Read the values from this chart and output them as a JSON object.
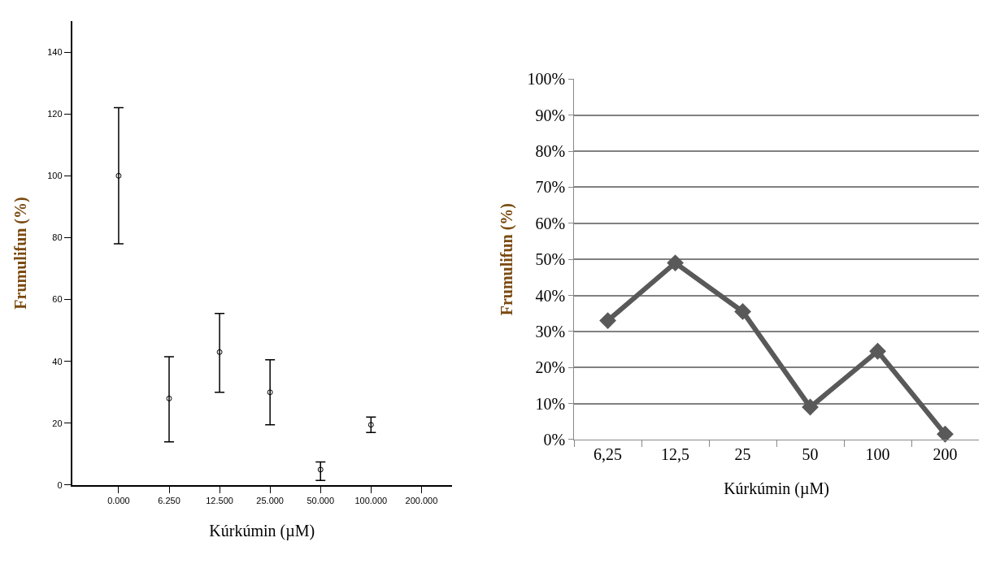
{
  "chart_data": [
    {
      "type": "scatter",
      "xlabel": "Kúrkúmin (µM)",
      "ylabel": "Frumulifun (%)",
      "categories": [
        "0.000",
        "6.250",
        "12.500",
        "25.000",
        "50.000",
        "100.000",
        "200.000"
      ],
      "values": [
        100,
        28,
        43,
        30,
        5,
        19.5,
        null
      ],
      "errors": [
        [
          78,
          122
        ],
        [
          14,
          41.5
        ],
        [
          30,
          55.5
        ],
        [
          19.5,
          40.5
        ],
        [
          1.5,
          7.5
        ],
        [
          17,
          22
        ],
        null
      ],
      "color": "#000000",
      "marker": "circle",
      "ylim": [
        0,
        150
      ],
      "yticks": [
        0,
        20,
        40,
        60,
        80,
        100,
        120,
        140
      ],
      "grid": false
    },
    {
      "type": "line",
      "xlabel": "Kúrkúmin (µM)",
      "ylabel": "Frumulifun (%)",
      "categories": [
        "6,25",
        "12,5",
        "25",
        "50",
        "100",
        "200"
      ],
      "values": [
        33,
        49,
        35.5,
        9,
        24.5,
        1.5
      ],
      "color": "#595959",
      "marker": "diamond",
      "line_style": "solid",
      "ylim": [
        0,
        100
      ],
      "yticks": [
        {
          "value": 0,
          "label": "0%"
        },
        {
          "value": 10,
          "label": "10%"
        },
        {
          "value": 20,
          "label": "20%"
        },
        {
          "value": 30,
          "label": "30%"
        },
        {
          "value": 40,
          "label": "40%"
        },
        {
          "value": 50,
          "label": "50%"
        },
        {
          "value": 60,
          "label": "60%"
        },
        {
          "value": 70,
          "label": "70%"
        },
        {
          "value": 80,
          "label": "80%"
        },
        {
          "value": 90,
          "label": "90%"
        },
        {
          "value": 100,
          "label": "100%"
        }
      ],
      "grid": "y"
    }
  ]
}
